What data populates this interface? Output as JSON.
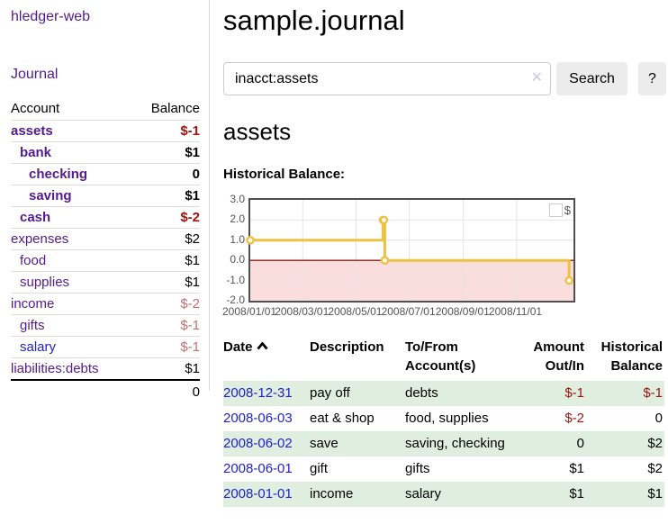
{
  "app": {
    "brand": "hledger-web"
  },
  "nav": {
    "journal": "Journal"
  },
  "sidebar": {
    "accounts_header": {
      "account": "Account",
      "balance": "Balance"
    },
    "accounts": [
      {
        "name": "assets",
        "indent": 0,
        "bold": true,
        "balance": "$-1",
        "balance_class": "neg-strong"
      },
      {
        "name": "bank",
        "indent": 1,
        "bold": true,
        "balance": "$1",
        "balance_class": ""
      },
      {
        "name": "checking",
        "indent": 2,
        "bold": true,
        "balance": "0",
        "balance_class": ""
      },
      {
        "name": "saving",
        "indent": 2,
        "bold": true,
        "balance": "$1",
        "balance_class": ""
      },
      {
        "name": "cash",
        "indent": 1,
        "bold": true,
        "balance": "$-2",
        "balance_class": "neg-strong"
      },
      {
        "name": "expenses",
        "indent": 0,
        "bold": false,
        "balance": "$2",
        "balance_class": ""
      },
      {
        "name": "food",
        "indent": 1,
        "bold": false,
        "balance": "$1",
        "balance_class": ""
      },
      {
        "name": "supplies",
        "indent": 1,
        "bold": false,
        "balance": "$1",
        "balance_class": ""
      },
      {
        "name": "income",
        "indent": 0,
        "bold": false,
        "balance": "$-2",
        "balance_class": "neg-soft"
      },
      {
        "name": "gifts",
        "indent": 1,
        "bold": false,
        "balance": "$-1",
        "balance_class": "neg-soft"
      },
      {
        "name": "salary",
        "indent": 1,
        "bold": false,
        "balance": "$-1",
        "balance_class": "neg-soft",
        "link_class": "unvisited"
      },
      {
        "name": "liabilities:debts",
        "indent": 0,
        "bold": false,
        "balance": "$1",
        "balance_class": ""
      }
    ],
    "total": "0"
  },
  "header": {
    "title": "sample.journal"
  },
  "search": {
    "value": "inacct:assets",
    "clear_icon": "✕",
    "button_label": "Search",
    "help_label": "?"
  },
  "account_page": {
    "title": "assets",
    "chart_heading": "Historical Balance:"
  },
  "chart_data": {
    "type": "line",
    "title": "Historical Balance",
    "step": true,
    "series": [
      {
        "name": "$",
        "color": "#edc240",
        "points": [
          [
            "2008-01-01",
            1
          ],
          [
            "2008-06-01",
            2
          ],
          [
            "2008-06-02",
            2
          ],
          [
            "2008-06-03",
            0
          ],
          [
            "2008-12-31",
            -1
          ]
        ]
      }
    ],
    "xlim": [
      "2008-01-01",
      "2009-01-05"
    ],
    "ylim": [
      -2,
      3
    ],
    "yticks": [
      "3.0",
      "2.0",
      "1.0",
      "0.0",
      "-1.0",
      "-2.0"
    ],
    "ytick_values": [
      3,
      2,
      1,
      0,
      -1,
      -2
    ],
    "xticks": [
      "2008/01/01",
      "2008/03/01",
      "2008/05/01",
      "2008/07/01",
      "2008/09/01",
      "2008/11/01"
    ],
    "grid": true,
    "legend": {
      "position": "top-right",
      "label": "$"
    },
    "negative_region": {
      "from": 0,
      "to": -2,
      "fill": "#fadddd",
      "zero_line_color": "#8b1d10"
    },
    "colors": {
      "grid": "#e4e4e4",
      "border": "#4f4f4f",
      "tick_text": "#545454"
    }
  },
  "register": {
    "columns": [
      {
        "label": "Date",
        "sorted": "asc",
        "align": "left"
      },
      {
        "label": "Description",
        "align": "left"
      },
      {
        "label": "To/From Account(s)",
        "align": "left"
      },
      {
        "label": "Amount Out/In",
        "align": "right"
      },
      {
        "label": "Historical Balance",
        "align": "right"
      }
    ],
    "rows": [
      {
        "date": "2008-12-31",
        "description": "pay off",
        "accounts": "debts",
        "amount": "$-1",
        "amount_class": "neg-strong",
        "balance": "$-1",
        "balance_class": "neg-strong"
      },
      {
        "date": "2008-06-03",
        "description": "eat & shop",
        "accounts": "food, supplies",
        "amount": "$-2",
        "amount_class": "neg-strong",
        "balance": "0",
        "balance_class": ""
      },
      {
        "date": "2008-06-02",
        "description": "save",
        "accounts": "saving, checking",
        "amount": "0",
        "amount_class": "",
        "balance": "$2",
        "balance_class": ""
      },
      {
        "date": "2008-06-01",
        "description": "gift",
        "accounts": "gifts",
        "amount": "$1",
        "amount_class": "",
        "balance": "$2",
        "balance_class": ""
      },
      {
        "date": "2008-01-01",
        "description": "income",
        "accounts": "salary",
        "amount": "$1",
        "amount_class": "",
        "balance": "$1",
        "balance_class": ""
      }
    ]
  }
}
